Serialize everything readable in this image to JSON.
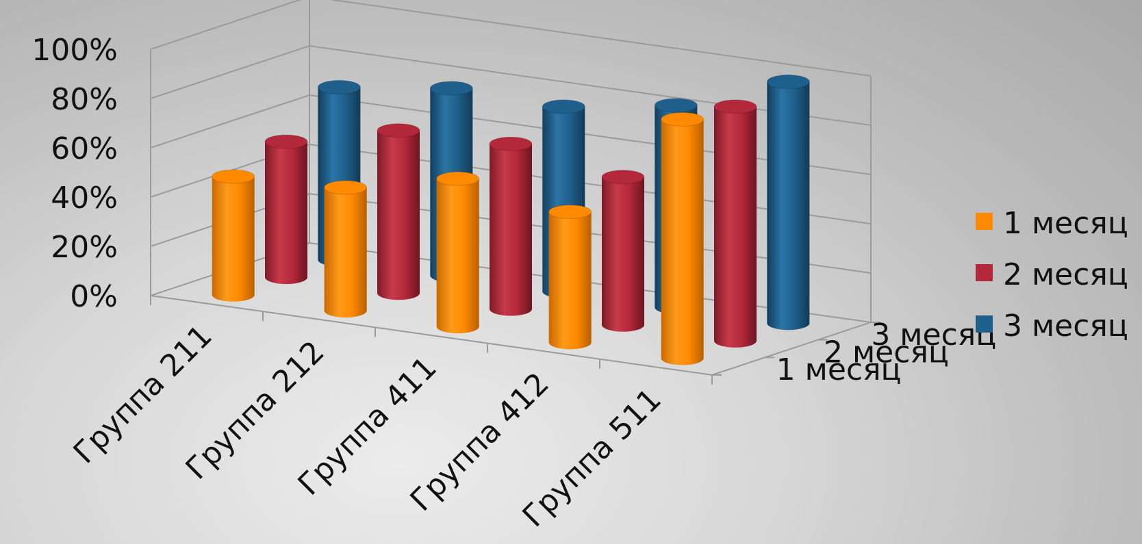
{
  "chart_data": {
    "type": "bar",
    "style": "3d-cylinder",
    "categories": [
      "Группа 211",
      "Группа 212",
      "Группа 411",
      "Группа 412",
      "Группа 511"
    ],
    "series": [
      {
        "name": "1 месяц",
        "values": [
          48,
          50,
          60,
          53,
          97
        ],
        "color": "#ff8a00"
      },
      {
        "name": "2 месяц",
        "values": [
          55,
          66,
          67,
          60,
          95
        ],
        "color": "#b3283a"
      },
      {
        "name": "3 месяц",
        "values": [
          70,
          76,
          75,
          82,
          98
        ],
        "color": "#1f5f8b"
      }
    ],
    "depth_labels": [
      "1 месяц",
      "2 месяц",
      "3 месяц"
    ],
    "yticks": [
      "0%",
      "20%",
      "40%",
      "60%",
      "80%",
      "100%"
    ],
    "ylim": [
      0,
      100
    ],
    "grid": true,
    "legend": "right"
  }
}
